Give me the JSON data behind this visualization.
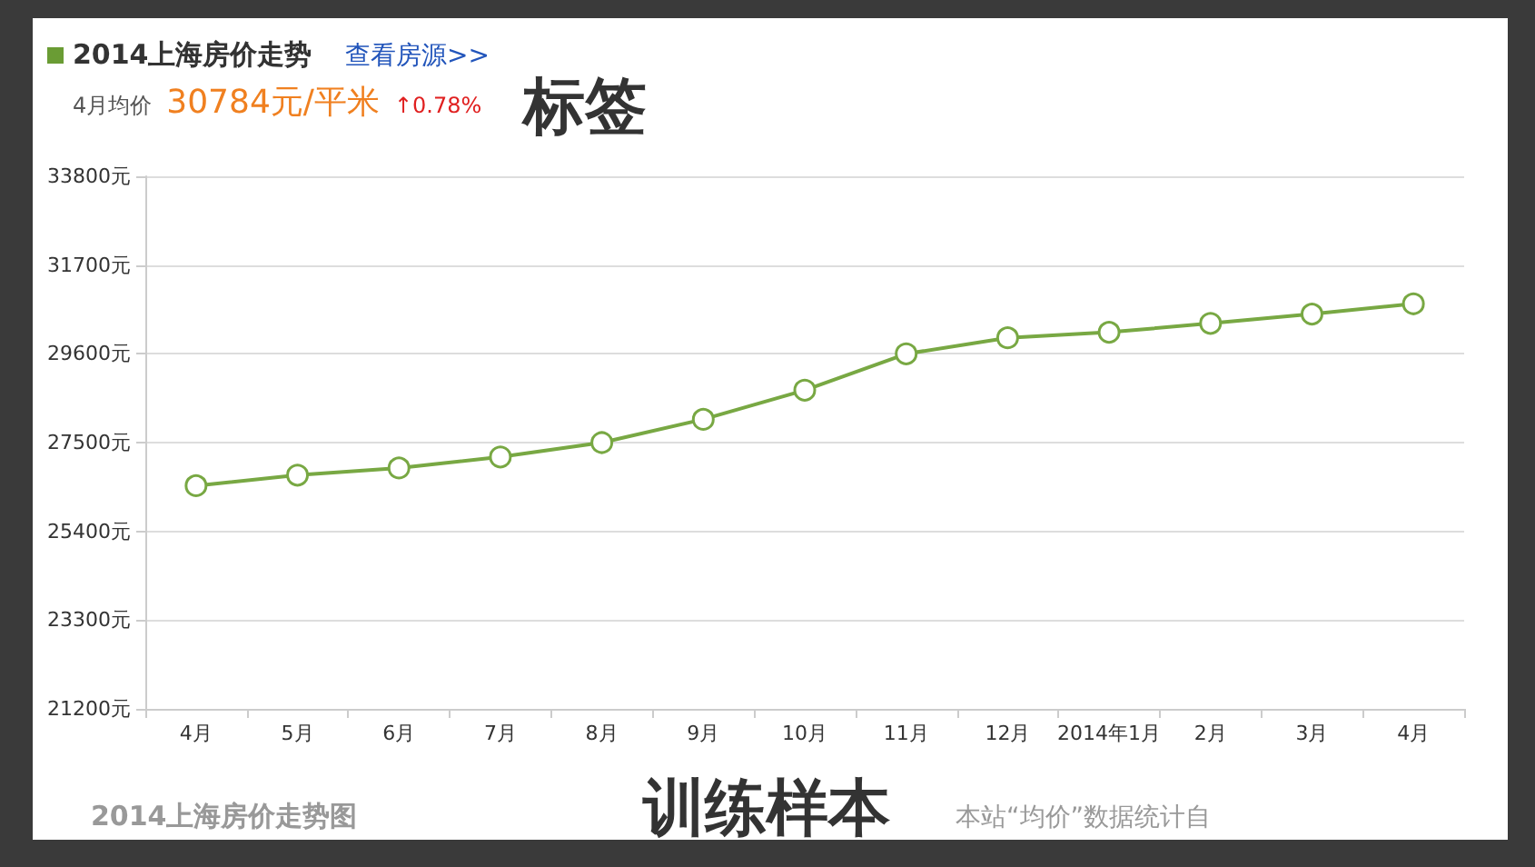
{
  "chart_data": {
    "type": "line",
    "title": "2014上海房价走势",
    "annotations": [
      "查看房源>>",
      "4月均价",
      "30784元/平米",
      "↑0.78%",
      "标签",
      "2014上海房价走势图",
      "训练样本",
      "本站“均价”数据统计自"
    ],
    "categories": [
      "4月",
      "5月",
      "6月",
      "7月",
      "8月",
      "9月",
      "10月",
      "11月",
      "12月",
      "2014年1月",
      "2月",
      "3月",
      "4月"
    ],
    "series": [
      {
        "color": "#78a843",
        "values": [
          26480,
          26730,
          26900,
          27160,
          27500,
          28050,
          28740,
          29600,
          29980,
          30110,
          30320,
          30540,
          30784
        ]
      }
    ],
    "ylim": [
      21200,
      33800
    ],
    "yticks": [
      {
        "value": 21200,
        "label": "21200元"
      },
      {
        "value": 23300,
        "label": "23300元"
      },
      {
        "value": 25400,
        "label": "25400元"
      },
      {
        "value": 27500,
        "label": "27500元"
      },
      {
        "value": 29600,
        "label": "29600元"
      },
      {
        "value": 31700,
        "label": "31700元"
      },
      {
        "value": 33800,
        "label": "33800元"
      }
    ],
    "grid": "y",
    "marker": "circle",
    "line_style": "solid"
  }
}
